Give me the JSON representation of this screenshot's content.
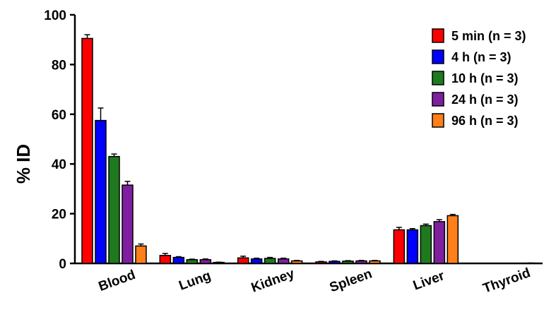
{
  "chart_data": {
    "type": "bar",
    "title": "",
    "xlabel": "",
    "ylabel": "% ID",
    "ylim": [
      0,
      100
    ],
    "yticks": [
      0,
      20,
      40,
      60,
      80,
      100
    ],
    "grid": false,
    "legend_position": "top-right",
    "categories": [
      "Blood",
      "Lung",
      "Kidney",
      "Spleen",
      "Liver",
      "Thyroid"
    ],
    "series": [
      {
        "name": "5 min (n = 3)",
        "color": "#ff0000",
        "values": [
          90.5,
          3.2,
          2.2,
          0.6,
          13.5,
          null
        ],
        "errors": [
          1.5,
          0.8,
          0.7,
          0.2,
          1.0,
          null
        ]
      },
      {
        "name": "4 h (n = 3)",
        "color": "#0000ff",
        "values": [
          57.5,
          2.4,
          1.8,
          0.8,
          13.5,
          null
        ],
        "errors": [
          5.0,
          0.3,
          0.3,
          0.2,
          0.5,
          null
        ]
      },
      {
        "name": "10 h (n = 3)",
        "color": "#1f7a1f",
        "values": [
          43.0,
          1.5,
          2.0,
          0.9,
          15.2,
          null
        ],
        "errors": [
          1.0,
          0.2,
          0.4,
          0.2,
          0.6,
          null
        ]
      },
      {
        "name": "24 h (n = 3)",
        "color": "#7f1fa0",
        "values": [
          31.5,
          1.5,
          1.8,
          1.0,
          16.8,
          null
        ],
        "errors": [
          1.5,
          0.3,
          0.3,
          0.2,
          0.8,
          null
        ]
      },
      {
        "name": "96 h (n = 3)",
        "color": "#ff7f1a",
        "values": [
          7.0,
          0.4,
          1.0,
          1.0,
          19.2,
          0.1
        ],
        "errors": [
          0.8,
          0.1,
          0.2,
          0.2,
          0.5,
          0.05
        ]
      }
    ]
  }
}
